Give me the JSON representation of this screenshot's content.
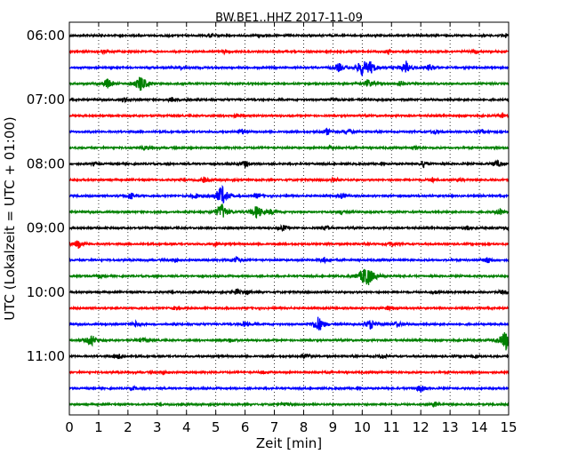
{
  "chart_data": {
    "type": "line",
    "title": "BW.BE1..HHZ 2017-11-09",
    "xlabel": "Zeit  [min]",
    "ylabel": "UTC (Lokalzeit = UTC + 01:00)",
    "xlim": [
      0,
      15
    ],
    "x_ticks": [
      "0",
      "1",
      "2",
      "3",
      "4",
      "5",
      "6",
      "7",
      "8",
      "9",
      "10",
      "11",
      "12",
      "13",
      "14",
      "15"
    ],
    "y_tick_labels": [
      "06:00",
      "07:00",
      "08:00",
      "09:00",
      "10:00",
      "11:00"
    ],
    "grid": "vertical dotted",
    "trace_colors": [
      "#000000",
      "#ff0000",
      "#0000ff",
      "#008000"
    ],
    "traces": [
      {
        "start": "06:00",
        "events": [
          [
            4.8,
            2
          ],
          [
            6.5,
            1.5
          ],
          [
            14.9,
            2
          ]
        ]
      },
      {
        "start": "06:15",
        "events": [
          [
            1.2,
            1.5
          ],
          [
            5.3,
            2
          ],
          [
            10.9,
            2.5
          ],
          [
            13.9,
            2
          ]
        ]
      },
      {
        "start": "06:30",
        "events": [
          [
            9.2,
            5
          ],
          [
            10.0,
            9
          ],
          [
            10.3,
            6
          ],
          [
            11.5,
            7
          ],
          [
            12.3,
            4
          ],
          [
            3.8,
            2
          ]
        ]
      },
      {
        "start": "06:45",
        "events": [
          [
            1.3,
            6
          ],
          [
            2.45,
            10
          ],
          [
            10.2,
            5
          ],
          [
            11.3,
            3
          ]
        ]
      },
      {
        "start": "07:00",
        "events": [
          [
            1.9,
            2.5
          ],
          [
            3.5,
            2.5
          ],
          [
            4.0,
            1.5
          ],
          [
            9.0,
            2
          ]
        ]
      },
      {
        "start": "07:15",
        "events": [
          [
            5.7,
            2
          ],
          [
            14.8,
            1.5
          ]
        ]
      },
      {
        "start": "07:30",
        "events": [
          [
            5.9,
            3
          ],
          [
            8.8,
            4
          ],
          [
            9.5,
            3
          ],
          [
            12.5,
            2
          ],
          [
            14.1,
            2.5
          ]
        ]
      },
      {
        "start": "07:45",
        "events": [
          [
            2.6,
            2.5
          ],
          [
            8.9,
            1.5
          ],
          [
            11.8,
            1.5
          ]
        ]
      },
      {
        "start": "08:00",
        "events": [
          [
            6.0,
            4
          ],
          [
            12.1,
            4
          ],
          [
            14.6,
            4
          ],
          [
            0.9,
            1.5
          ]
        ]
      },
      {
        "start": "08:15",
        "events": [
          [
            4.6,
            3
          ],
          [
            9.0,
            2
          ],
          [
            12.4,
            2.5
          ],
          [
            13.3,
            1.5
          ]
        ]
      },
      {
        "start": "08:30",
        "events": [
          [
            2.1,
            4
          ],
          [
            4.3,
            3
          ],
          [
            5.2,
            12
          ],
          [
            6.4,
            2.5
          ],
          [
            9.3,
            3
          ]
        ]
      },
      {
        "start": "08:45",
        "events": [
          [
            5.2,
            10
          ],
          [
            6.4,
            8
          ],
          [
            6.9,
            3
          ],
          [
            9.3,
            2.5
          ],
          [
            14.7,
            4
          ]
        ]
      },
      {
        "start": "09:00",
        "events": [
          [
            7.3,
            3
          ],
          [
            8.8,
            2
          ],
          [
            13.6,
            2
          ],
          [
            15.0,
            2
          ]
        ]
      },
      {
        "start": "09:15",
        "events": [
          [
            0.3,
            5
          ],
          [
            5.0,
            2
          ],
          [
            11.0,
            2.5
          ]
        ]
      },
      {
        "start": "09:30",
        "events": [
          [
            3.6,
            2.5
          ],
          [
            5.7,
            4
          ],
          [
            8.7,
            3
          ],
          [
            14.3,
            4
          ]
        ]
      },
      {
        "start": "09:45",
        "events": [
          [
            10.15,
            14
          ],
          [
            1.0,
            1.5
          ]
        ]
      },
      {
        "start": "10:00",
        "events": [
          [
            5.7,
            3
          ],
          [
            6.1,
            2.5
          ],
          [
            12.5,
            2
          ],
          [
            14.8,
            2.5
          ]
        ]
      },
      {
        "start": "10:15",
        "events": [
          [
            3.6,
            2
          ],
          [
            10.9,
            2
          ]
        ]
      },
      {
        "start": "10:30",
        "events": [
          [
            2.3,
            4
          ],
          [
            6.0,
            3
          ],
          [
            8.5,
            9
          ],
          [
            10.3,
            6
          ],
          [
            11.2,
            3
          ]
        ]
      },
      {
        "start": "10:45",
        "events": [
          [
            0.75,
            7
          ],
          [
            2.5,
            3
          ],
          [
            5.5,
            2.5
          ],
          [
            14.9,
            12
          ]
        ]
      },
      {
        "start": "11:00",
        "events": [
          [
            1.7,
            3
          ],
          [
            8.1,
            3
          ],
          [
            10.7,
            2.5
          ],
          [
            13.9,
            2
          ]
        ]
      },
      {
        "start": "11:15",
        "events": [
          [
            3.2,
            2.5
          ],
          [
            6.6,
            1.5
          ]
        ]
      },
      {
        "start": "11:30",
        "events": [
          [
            12.0,
            4
          ],
          [
            2.2,
            1.5
          ]
        ]
      },
      {
        "start": "11:45",
        "events": [
          [
            12.5,
            3
          ],
          [
            7.4,
            1.5
          ]
        ]
      }
    ]
  }
}
